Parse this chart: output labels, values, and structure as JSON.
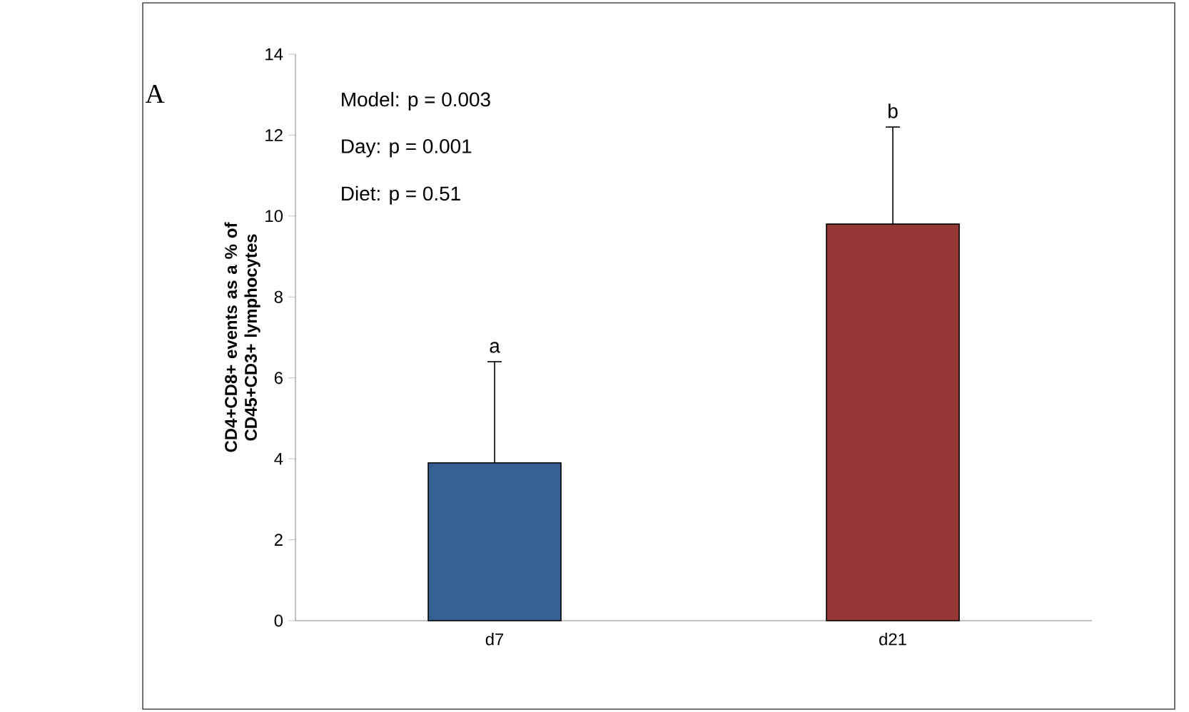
{
  "chart_data": {
    "type": "bar",
    "ylabel": "CD4+CD8+ events as a % of CD45+CD3+ lymphocytes",
    "categories": [
      "d7",
      "d21"
    ],
    "values": [
      3.9,
      9.8
    ],
    "colors": [
      "#376092",
      "#953735"
    ],
    "errors": [
      [
        3.9,
        6.4
      ],
      [
        9.8,
        12.2
      ]
    ],
    "ylim": [
      0,
      14
    ],
    "yticks": [
      0,
      2,
      4,
      6,
      8,
      10,
      12,
      14
    ],
    "annotations": [
      "A",
      "Model: p = 0.003",
      "Day: p = 0.001",
      "Diet: p = 0.51",
      {
        "text": "a",
        "x": "d7",
        "y": 6.4
      },
      {
        "text": "b",
        "x": "d21",
        "y": 12.2
      }
    ]
  }
}
